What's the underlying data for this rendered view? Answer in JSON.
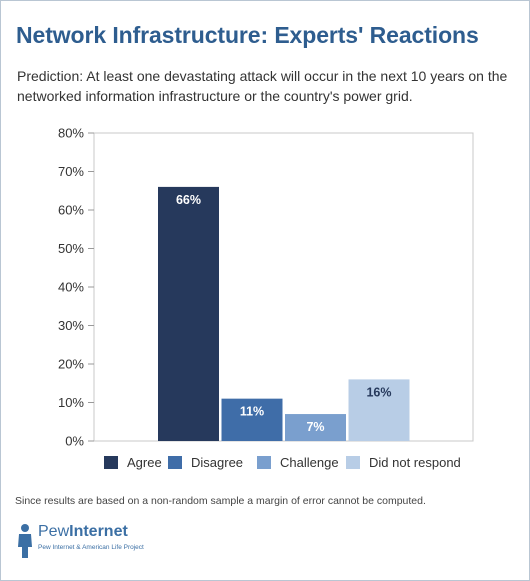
{
  "header": {
    "title": "Network Infrastructure: Experts' Reactions",
    "subtitle": "Prediction: At least one devastating attack will occur in the next 10 years on the networked information infrastructure or the country's power grid."
  },
  "footer": {
    "note": "Since results are based on a non-random sample a margin of error cannot be computed."
  },
  "logo": {
    "name_part1": "Pew",
    "name_part2": "Internet",
    "tagline": "Pew Internet & American Life Project"
  },
  "chart_data": {
    "type": "bar",
    "categories": [
      "Agree",
      "Disagree",
      "Challenge",
      "Did not respond"
    ],
    "values": [
      66,
      11,
      7,
      16
    ],
    "data_labels": [
      "66%",
      "11%",
      "7%",
      "16%"
    ],
    "colors": [
      "#26395c",
      "#3f6da8",
      "#7a9fce",
      "#b8cde6"
    ],
    "label_colors": [
      "#ffffff",
      "#ffffff",
      "#ffffff",
      "#26395c"
    ],
    "ylim": [
      0,
      80
    ],
    "yticks": [
      "0%",
      "10%",
      "20%",
      "30%",
      "40%",
      "50%",
      "60%",
      "70%",
      "80%"
    ],
    "grid": false,
    "legend_position": "bottom",
    "legend": [
      "Agree",
      "Disagree",
      "Challenge",
      "Did not respond"
    ]
  }
}
